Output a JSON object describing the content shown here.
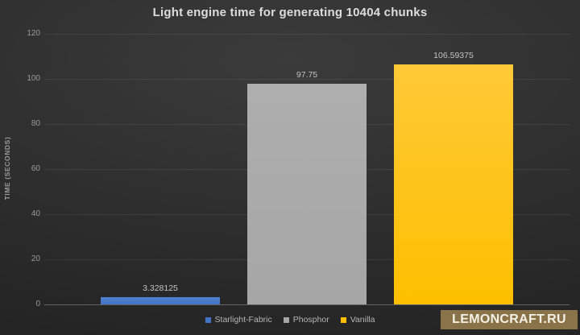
{
  "chart_data": {
    "type": "bar",
    "title": "Light engine time for generating 10404 chunks",
    "xlabel": "",
    "ylabel": "TIME (SECONDS)",
    "ylim": [
      0,
      120
    ],
    "ytick_step": 20,
    "grid": true,
    "legend_position": "bottom",
    "categories": [
      ""
    ],
    "series": [
      {
        "name": "Starlight-Fabric",
        "value": 3.328125,
        "label": "3.328125",
        "color": "#4472c4",
        "color_top": "#5181d2"
      },
      {
        "name": "Phosphor",
        "value": 97.75,
        "label": "97.75",
        "color": "#a6a6a6",
        "color_top": "#aeaeae"
      },
      {
        "name": "Vanilla",
        "value": 106.59375,
        "label": "106.59375",
        "color": "#fdbf00",
        "color_top": "#ffc937"
      }
    ]
  },
  "watermark": {
    "text": "LEMONCRAFT.RU",
    "bg_color": "#8a7348",
    "text_color": "#f5f1e6"
  },
  "colors": {
    "background_center": "#3b3b3b",
    "background_edge": "#222222",
    "title_text": "#dddddd",
    "tick_text": "#9b9b9b",
    "value_label_text": "#c3c3c3",
    "legend_text": "#b5b5b5",
    "gridline": "rgba(255,255,255,0.08)"
  }
}
